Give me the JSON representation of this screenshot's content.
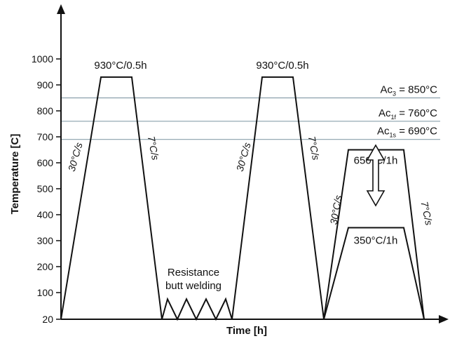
{
  "chart_data": {
    "type": "line",
    "title": "",
    "xlabel": "Time [h]",
    "ylabel": "Temperature [C]",
    "ylim": [
      20,
      1000
    ],
    "yticks": [
      20,
      100,
      200,
      300,
      400,
      500,
      600,
      700,
      800,
      900,
      1000
    ],
    "grid": false,
    "critical_temperatures": [
      {
        "name": "Ac",
        "sub": "3",
        "value": 850,
        "text": " = 850°C"
      },
      {
        "name": "Ac",
        "sub": "1f",
        "value": 760,
        "text": " = 760°C"
      },
      {
        "name": "Ac",
        "sub": "1s",
        "value": 690,
        "text": " = 690°C"
      }
    ],
    "cycles": [
      {
        "peak": 930,
        "label": "930°C/0.5h",
        "heat_rate": "30°C/s",
        "cool_rate": "7°C/s"
      },
      {
        "peak": 930,
        "label": "930°C/0.5h",
        "heat_rate": "30°C/s",
        "cool_rate": "7°C/s"
      }
    ],
    "tempering": {
      "high": 650,
      "high_label": "650°C/1h",
      "low": 350,
      "low_label": "350°C/1h",
      "heat_rate": "30°C/s",
      "cool_rate": "7°C/s"
    },
    "welding": {
      "line1": "Resistance",
      "line2": "butt welding",
      "amplitude": 75
    }
  },
  "colors": {
    "axis": "#111111",
    "profile": "#111111",
    "critical_lines": "#8aa0ac"
  }
}
